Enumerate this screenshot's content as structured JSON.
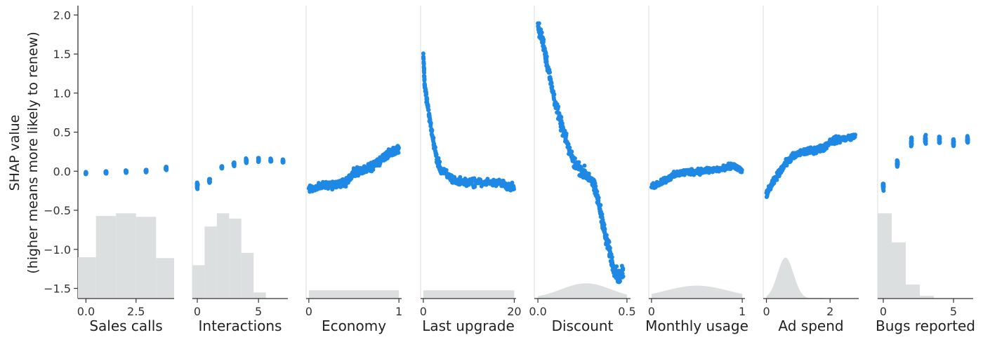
{
  "chart_data": {
    "type": "scatter",
    "y_axis": {
      "label_lines": [
        "SHAP value",
        "(higher means more likely to renew)"
      ],
      "ylim": [
        -1.63,
        2.12
      ],
      "ticks": [
        2.0,
        1.5,
        1.0,
        0.5,
        0.0,
        -0.5,
        -1.0,
        -1.5
      ],
      "tick_labels": [
        "2.0",
        "1.5",
        "1.0",
        "0.5",
        "0.0",
        "−0.5",
        "−1.0",
        "−1.5"
      ]
    },
    "point_color": "#1e88e5",
    "histogram_color": "#dcdfe0",
    "panels": [
      {
        "name": "Sales calls",
        "xlim": [
          -0.4,
          4.4
        ],
        "xticks": [
          0,
          2.5
        ],
        "xtick_labels": [
          "0.0",
          "2.5"
        ],
        "groups": [
          {
            "x": 0,
            "y": -0.025,
            "spread": 0.02
          },
          {
            "x": 1,
            "y": -0.015,
            "spread": 0.02
          },
          {
            "x": 2,
            "y": -0.005,
            "spread": 0.02
          },
          {
            "x": 3,
            "y": 0.005,
            "spread": 0.02
          },
          {
            "x": 4,
            "y": 0.04,
            "spread": 0.03
          }
        ],
        "histogram": {
          "edges": [
            -0.4,
            0.5,
            1.5,
            2.5,
            3.5,
            4.4
          ],
          "heights": [
            0.47,
            0.94,
            0.97,
            0.93,
            0.46
          ]
        }
      },
      {
        "name": "Interactions",
        "xlim": [
          -0.4,
          7.4
        ],
        "xticks": [
          0,
          5
        ],
        "xtick_labels": [
          "0",
          "5"
        ],
        "groups": [
          {
            "x": 0,
            "y": -0.18,
            "spread": 0.06
          },
          {
            "x": 1,
            "y": -0.12,
            "spread": 0.04
          },
          {
            "x": 2,
            "y": 0.05,
            "spread": 0.02
          },
          {
            "x": 3,
            "y": 0.09,
            "spread": 0.03
          },
          {
            "x": 4,
            "y": 0.13,
            "spread": 0.04
          },
          {
            "x": 5,
            "y": 0.14,
            "spread": 0.04
          },
          {
            "x": 6,
            "y": 0.14,
            "spread": 0.03
          },
          {
            "x": 7,
            "y": 0.13,
            "spread": 0.03
          }
        ],
        "histogram": {
          "edges": [
            -0.4,
            0.6,
            1.6,
            2.6,
            3.6,
            4.6,
            5.6
          ],
          "heights": [
            0.38,
            0.82,
            0.97,
            0.91,
            0.52,
            0.07
          ]
        }
      },
      {
        "name": "Economy",
        "xlim": [
          -0.03,
          1.03
        ],
        "xticks": [
          0,
          1
        ],
        "xtick_labels": [
          "0",
          "1"
        ],
        "curve": [
          [
            0.0,
            -0.23
          ],
          [
            0.1,
            -0.2
          ],
          [
            0.2,
            -0.18
          ],
          [
            0.3,
            -0.17
          ],
          [
            0.4,
            -0.15
          ],
          [
            0.45,
            -0.1
          ],
          [
            0.5,
            -0.02
          ],
          [
            0.55,
            0.0
          ],
          [
            0.6,
            0.02
          ],
          [
            0.7,
            0.06
          ],
          [
            0.78,
            0.12
          ],
          [
            0.85,
            0.2
          ],
          [
            0.9,
            0.23
          ],
          [
            0.95,
            0.26
          ],
          [
            1.0,
            0.3
          ]
        ],
        "curve_spread": 0.07,
        "histogram": {
          "flat": true,
          "edges": [
            0.0,
            1.0
          ],
          "height": 0.07
        }
      },
      {
        "name": "Last upgrade",
        "xlim": [
          -0.6,
          20.4
        ],
        "xticks": [
          0,
          20
        ],
        "xtick_labels": [
          "0",
          "20"
        ],
        "curve": [
          [
            0.0,
            1.5
          ],
          [
            0.3,
            1.1
          ],
          [
            1.0,
            0.82
          ],
          [
            2.0,
            0.45
          ],
          [
            3.0,
            0.15
          ],
          [
            4.0,
            0.0
          ],
          [
            6.0,
            -0.08
          ],
          [
            7.0,
            -0.13
          ],
          [
            10.0,
            -0.14
          ],
          [
            14.0,
            -0.14
          ],
          [
            18.0,
            -0.17
          ],
          [
            20.0,
            -0.22
          ]
        ],
        "curve_spread": 0.08,
        "histogram": {
          "flat": true,
          "edges": [
            0.0,
            20.0
          ],
          "height": 0.07
        }
      },
      {
        "name": "Discount",
        "xlim": [
          -0.02,
          0.52
        ],
        "xticks": [
          0.0,
          0.5
        ],
        "xtick_labels": [
          "0.0",
          "0.5"
        ],
        "curve": [
          [
            0.0,
            1.85
          ],
          [
            0.03,
            1.65
          ],
          [
            0.05,
            1.4
          ],
          [
            0.08,
            1.05
          ],
          [
            0.12,
            0.68
          ],
          [
            0.15,
            0.45
          ],
          [
            0.2,
            0.12
          ],
          [
            0.25,
            0.0
          ],
          [
            0.3,
            -0.1
          ],
          [
            0.33,
            -0.3
          ],
          [
            0.36,
            -0.6
          ],
          [
            0.38,
            -0.85
          ],
          [
            0.4,
            -1.0
          ],
          [
            0.42,
            -1.2
          ],
          [
            0.45,
            -1.35
          ],
          [
            0.48,
            -1.3
          ]
        ],
        "curve_spread": 0.12,
        "histogram": {
          "mound": true,
          "edges": [
            0.0,
            0.5
          ],
          "center": 0.27,
          "width": 0.14,
          "height": 0.13
        }
      },
      {
        "name": "Monthly usage",
        "xlim": [
          -0.03,
          1.03
        ],
        "xticks": [
          0,
          1
        ],
        "xtick_labels": [
          "0",
          "1"
        ],
        "curve": [
          [
            0.0,
            -0.2
          ],
          [
            0.1,
            -0.14
          ],
          [
            0.2,
            -0.08
          ],
          [
            0.3,
            -0.03
          ],
          [
            0.4,
            -0.01
          ],
          [
            0.5,
            0.0
          ],
          [
            0.6,
            0.01
          ],
          [
            0.7,
            0.02
          ],
          [
            0.8,
            0.03
          ],
          [
            0.9,
            0.07
          ],
          [
            1.0,
            0.0
          ]
        ],
        "curve_spread": 0.06,
        "histogram": {
          "mound": true,
          "edges": [
            0.0,
            1.0
          ],
          "center": 0.5,
          "width": 0.35,
          "height": 0.11
        }
      },
      {
        "name": "Ad spend",
        "xlim": [
          -0.1,
          2.9
        ],
        "xticks": [
          0,
          2
        ],
        "xtick_labels": [
          "0",
          "2"
        ],
        "curve": [
          [
            0.0,
            -0.3
          ],
          [
            0.2,
            -0.15
          ],
          [
            0.4,
            -0.02
          ],
          [
            0.6,
            0.1
          ],
          [
            0.8,
            0.18
          ],
          [
            1.0,
            0.22
          ],
          [
            1.2,
            0.25
          ],
          [
            1.4,
            0.26
          ],
          [
            1.6,
            0.28
          ],
          [
            1.8,
            0.3
          ],
          [
            2.0,
            0.38
          ],
          [
            2.2,
            0.4
          ],
          [
            2.5,
            0.42
          ],
          [
            2.8,
            0.45
          ]
        ],
        "curve_spread": 0.06,
        "histogram": {
          "mound": true,
          "edges": [
            0.0,
            1.8
          ],
          "center": 0.6,
          "width": 0.25,
          "height": 0.35
        }
      },
      {
        "name": "Bugs reported",
        "xlim": [
          -0.4,
          6.4
        ],
        "xticks": [
          0,
          5
        ],
        "xtick_labels": [
          "0",
          "5"
        ],
        "groups": [
          {
            "x": 0,
            "y": -0.2,
            "spread": 0.07
          },
          {
            "x": 1,
            "y": 0.1,
            "spread": 0.06
          },
          {
            "x": 2,
            "y": 0.38,
            "spread": 0.09
          },
          {
            "x": 3,
            "y": 0.4,
            "spread": 0.08
          },
          {
            "x": 4,
            "y": 0.4,
            "spread": 0.08
          },
          {
            "x": 5,
            "y": 0.37,
            "spread": 0.07
          },
          {
            "x": 6,
            "y": 0.4,
            "spread": 0.06
          }
        ],
        "histogram": {
          "edges": [
            -0.4,
            0.6,
            1.6,
            2.6,
            3.6
          ],
          "heights": [
            0.97,
            0.64,
            0.16,
            0.03
          ]
        }
      }
    ]
  }
}
